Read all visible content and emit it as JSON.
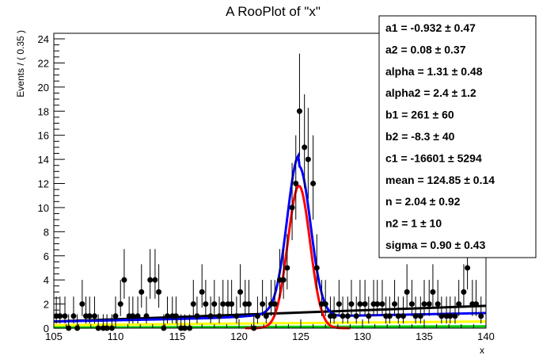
{
  "chart_data": {
    "type": "scatter",
    "title": "A RooPlot of \"x\"",
    "xlabel": "x",
    "ylabel": "Events / ( 0.35 )",
    "xlim": [
      105,
      140
    ],
    "ylim": [
      0,
      25
    ],
    "x_ticks": [
      "105",
      "110",
      "115",
      "120",
      "125",
      "130",
      "135",
      "140"
    ],
    "y_ticks": [
      "0",
      "2",
      "4",
      "6",
      "8",
      "10",
      "12",
      "14",
      "16",
      "18",
      "20",
      "22",
      "24"
    ],
    "grid": false,
    "colors": {
      "points": "#000000",
      "total_fit": "#0000ff",
      "signal": "#ff0000",
      "background": "#000000",
      "component_yellow": "#ffff00",
      "component_green": "#00cc00"
    },
    "points": [
      {
        "x": 105.2,
        "y": 1
      },
      {
        "x": 105.5,
        "y": 1
      },
      {
        "x": 105.9,
        "y": 1
      },
      {
        "x": 106.2,
        "y": 0
      },
      {
        "x": 106.6,
        "y": 1
      },
      {
        "x": 106.9,
        "y": 0
      },
      {
        "x": 107.3,
        "y": 2
      },
      {
        "x": 107.6,
        "y": 1
      },
      {
        "x": 107.9,
        "y": 1
      },
      {
        "x": 108.3,
        "y": 1
      },
      {
        "x": 108.6,
        "y": 0
      },
      {
        "x": 109.0,
        "y": 0
      },
      {
        "x": 109.3,
        "y": 0
      },
      {
        "x": 109.7,
        "y": 0
      },
      {
        "x": 110.0,
        "y": 1
      },
      {
        "x": 110.4,
        "y": 2
      },
      {
        "x": 110.7,
        "y": 4
      },
      {
        "x": 111.1,
        "y": 1
      },
      {
        "x": 111.4,
        "y": 1
      },
      {
        "x": 111.8,
        "y": 1
      },
      {
        "x": 112.1,
        "y": 3
      },
      {
        "x": 112.5,
        "y": 1
      },
      {
        "x": 112.8,
        "y": 4
      },
      {
        "x": 113.2,
        "y": 4
      },
      {
        "x": 113.5,
        "y": 3
      },
      {
        "x": 113.9,
        "y": 0
      },
      {
        "x": 114.2,
        "y": 1
      },
      {
        "x": 114.6,
        "y": 1
      },
      {
        "x": 114.9,
        "y": 1
      },
      {
        "x": 115.3,
        "y": 0
      },
      {
        "x": 115.6,
        "y": 0
      },
      {
        "x": 116.0,
        "y": 0
      },
      {
        "x": 116.3,
        "y": 2
      },
      {
        "x": 116.6,
        "y": 1
      },
      {
        "x": 117.0,
        "y": 3
      },
      {
        "x": 117.3,
        "y": 2
      },
      {
        "x": 117.7,
        "y": 1
      },
      {
        "x": 118.0,
        "y": 2
      },
      {
        "x": 118.4,
        "y": 1
      },
      {
        "x": 118.7,
        "y": 2
      },
      {
        "x": 119.1,
        "y": 2
      },
      {
        "x": 119.4,
        "y": 2
      },
      {
        "x": 119.8,
        "y": 1
      },
      {
        "x": 120.1,
        "y": 3
      },
      {
        "x": 120.5,
        "y": 2
      },
      {
        "x": 120.8,
        "y": 2
      },
      {
        "x": 121.2,
        "y": 0
      },
      {
        "x": 121.5,
        "y": 1
      },
      {
        "x": 121.9,
        "y": 2
      },
      {
        "x": 122.2,
        "y": 1
      },
      {
        "x": 122.6,
        "y": 2
      },
      {
        "x": 122.9,
        "y": 2
      },
      {
        "x": 123.3,
        "y": 4
      },
      {
        "x": 123.6,
        "y": 4
      },
      {
        "x": 123.9,
        "y": 5
      },
      {
        "x": 124.3,
        "y": 10
      },
      {
        "x": 124.6,
        "y": 12
      },
      {
        "x": 124.9,
        "y": 18
      },
      {
        "x": 125.3,
        "y": 15
      },
      {
        "x": 125.6,
        "y": 14
      },
      {
        "x": 126.0,
        "y": 12
      },
      {
        "x": 126.3,
        "y": 5
      },
      {
        "x": 126.7,
        "y": 2
      },
      {
        "x": 127.0,
        "y": 2
      },
      {
        "x": 127.4,
        "y": 1
      },
      {
        "x": 127.7,
        "y": 1
      },
      {
        "x": 128.1,
        "y": 2
      },
      {
        "x": 128.4,
        "y": 1
      },
      {
        "x": 128.8,
        "y": 1
      },
      {
        "x": 129.1,
        "y": 2
      },
      {
        "x": 129.5,
        "y": 1
      },
      {
        "x": 129.8,
        "y": 2
      },
      {
        "x": 130.2,
        "y": 2
      },
      {
        "x": 130.5,
        "y": 1
      },
      {
        "x": 130.9,
        "y": 2
      },
      {
        "x": 131.2,
        "y": 2
      },
      {
        "x": 131.6,
        "y": 2
      },
      {
        "x": 131.9,
        "y": 1
      },
      {
        "x": 132.2,
        "y": 1
      },
      {
        "x": 132.6,
        "y": 2
      },
      {
        "x": 132.9,
        "y": 1
      },
      {
        "x": 133.3,
        "y": 1
      },
      {
        "x": 133.6,
        "y": 3
      },
      {
        "x": 134.0,
        "y": 2
      },
      {
        "x": 134.3,
        "y": 1
      },
      {
        "x": 134.7,
        "y": 1
      },
      {
        "x": 135.0,
        "y": 2
      },
      {
        "x": 135.4,
        "y": 2
      },
      {
        "x": 135.7,
        "y": 3
      },
      {
        "x": 136.1,
        "y": 2
      },
      {
        "x": 136.4,
        "y": 1
      },
      {
        "x": 136.8,
        "y": 1
      },
      {
        "x": 137.1,
        "y": 1
      },
      {
        "x": 137.5,
        "y": 1
      },
      {
        "x": 137.8,
        "y": 2
      },
      {
        "x": 138.2,
        "y": 3
      },
      {
        "x": 138.5,
        "y": 5
      },
      {
        "x": 138.9,
        "y": 2
      },
      {
        "x": 139.2,
        "y": 2
      },
      {
        "x": 139.6,
        "y": 1
      }
    ],
    "curves": {
      "background": {
        "x": [
          105,
          140
        ],
        "y": [
          0.55,
          1.85
        ]
      },
      "green_component": {
        "x": [
          105,
          140
        ],
        "y": [
          0.05,
          0.15
        ]
      },
      "yellow_component": {
        "x": [
          105,
          140
        ],
        "y": [
          0.25,
          0.55
        ]
      },
      "signal_peak": {
        "mean": 124.85,
        "sigma": 0.9,
        "amplitude": 11.8
      },
      "total_peak": {
        "mean": 124.85,
        "sigma": 0.95,
        "amplitude": 12.5
      }
    },
    "params": [
      {
        "name": "a1",
        "text": "a1 = -0.932 ± 0.47"
      },
      {
        "name": "a2",
        "text": "a2 =  0.08 ± 0.37"
      },
      {
        "name": "alpha",
        "text": "alpha =  1.31 ± 0.48"
      },
      {
        "name": "alpha2",
        "text": "alpha2 =  2.4 ± 1.2"
      },
      {
        "name": "b1",
        "text": "b1 =  261 ± 60"
      },
      {
        "name": "b2",
        "text": "b2 = -8.3 ± 40"
      },
      {
        "name": "c1",
        "text": "c1 = -16601 ± 5294"
      },
      {
        "name": "mean",
        "text": "mean =  124.85 ± 0.14"
      },
      {
        "name": "n",
        "text": "n =  2.04 ± 0.92"
      },
      {
        "name": "n2",
        "text": "n2 =  1 ± 10"
      },
      {
        "name": "sigma",
        "text": "sigma =  0.90 ± 0.43"
      }
    ]
  }
}
